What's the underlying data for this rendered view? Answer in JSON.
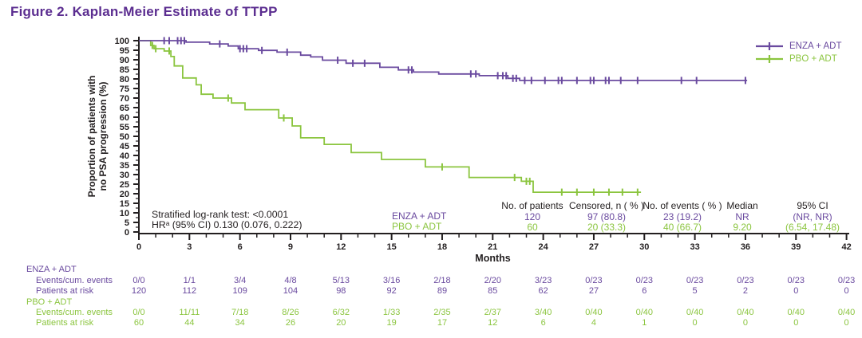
{
  "figure": {
    "title": "Figure 2. Kaplan-Meier Estimate of TTPP"
  },
  "colors": {
    "purple": "#6a4a9f",
    "green": "#8bc53f",
    "title_purple": "#5b2d90",
    "ink": "#231f20"
  },
  "chart_data": {
    "type": "line",
    "subtype": "kaplan-meier-step",
    "xlabel": "Months",
    "ylabel_lines": [
      "Proportion of patients with",
      "no PSA progression (%)"
    ],
    "xlim": [
      0,
      42
    ],
    "x_major_tick": 3,
    "x_minor_tick": 1,
    "ylim": [
      0,
      100
    ],
    "y_major_tick": 5,
    "y_minor_tick": 2.5,
    "grid": false,
    "legend_position": "top-right",
    "legend": [
      {
        "name": "ENZA + ADT",
        "color": "#6a4a9f"
      },
      {
        "name": "PBO + ADT",
        "color": "#8bc53f"
      }
    ],
    "series": [
      {
        "name": "ENZA + ADT",
        "color": "#6a4a9f",
        "steps": [
          [
            0,
            100
          ],
          [
            2.8,
            99.2
          ],
          [
            4.2,
            98.3
          ],
          [
            5.3,
            97.2
          ],
          [
            5.9,
            95.8
          ],
          [
            7.1,
            94.9
          ],
          [
            8.2,
            94.0
          ],
          [
            9.6,
            92.4
          ],
          [
            10.2,
            91.5
          ],
          [
            10.9,
            89.8
          ],
          [
            12.3,
            88.2
          ],
          [
            14.3,
            86.1
          ],
          [
            15.4,
            84.7
          ],
          [
            16.3,
            83.6
          ],
          [
            17.8,
            82.6
          ],
          [
            20.2,
            81.7
          ],
          [
            21.9,
            80.3
          ],
          [
            22.6,
            79.2
          ]
        ],
        "end_month": 36.1,
        "censor_months": [
          1.5,
          1.8,
          2.3,
          2.5,
          2.7,
          4.8,
          6.0,
          6.2,
          6.4,
          7.3,
          8.8,
          11.8,
          12.7,
          13.4,
          16.0,
          16.2,
          19.7,
          20.0,
          21.3,
          21.6,
          21.8,
          22.2,
          22.4,
          22.9,
          23.3,
          24.1,
          24.9,
          25.1,
          26.0,
          26.8,
          27.0,
          27.7,
          27.9,
          28.6,
          29.6,
          32.2,
          33.1,
          36.0
        ]
      },
      {
        "name": "PBO + ADT",
        "color": "#8bc53f",
        "steps": [
          [
            0,
            100
          ],
          [
            0.7,
            97.5
          ],
          [
            0.9,
            95.8
          ],
          [
            1.5,
            94.6
          ],
          [
            1.9,
            91.7
          ],
          [
            2.1,
            86.8
          ],
          [
            2.6,
            80.5
          ],
          [
            3.4,
            76.9
          ],
          [
            3.7,
            72.0
          ],
          [
            4.4,
            70.0
          ],
          [
            5.5,
            67.4
          ],
          [
            6.3,
            63.9
          ],
          [
            8.3,
            59.6
          ],
          [
            9.1,
            55.4
          ],
          [
            9.6,
            49.2
          ],
          [
            11.0,
            45.8
          ],
          [
            12.6,
            41.5
          ],
          [
            14.4,
            37.9
          ],
          [
            17.0,
            34.0
          ],
          [
            19.6,
            28.5
          ],
          [
            22.7,
            26.5
          ],
          [
            23.4,
            20.8
          ]
        ],
        "end_month": 29.8,
        "censor_months": [
          0.8,
          1.0,
          1.8,
          5.3,
          8.6,
          18.0,
          22.3,
          23.0,
          23.2,
          25.1,
          26.0,
          27.0,
          27.9,
          28.7,
          29.6
        ]
      }
    ],
    "annotations": {
      "logrank": "Stratified log-rank test: <0.0001",
      "hr": "HRᵃ (95% CI) 0.130 (0.076, 0.222)"
    }
  },
  "stats_table": {
    "headers": [
      "No. of patients",
      "Censored, n ( % )",
      "No. of events ( % )",
      "Median",
      "95% CI"
    ],
    "rows": [
      {
        "label": "ENZA + ADT",
        "values": [
          "120",
          "97 (80.8)",
          "23 (19.2)",
          "NR",
          "(NR, NR)"
        ]
      },
      {
        "label": "PBO + ADT",
        "values": [
          "60",
          "20 (33.3)",
          "40 (66.7)",
          "9.20",
          "(6.54, 17.48)"
        ]
      }
    ]
  },
  "risk_table": {
    "groups": [
      {
        "label": "ENZA + ADT",
        "rows": [
          {
            "label": "Events/cum. events",
            "values": [
              "0/0",
              "1/1",
              "3/4",
              "4/8",
              "5/13",
              "3/16",
              "2/18",
              "2/20",
              "3/23",
              "0/23",
              "0/23",
              "0/23",
              "0/23",
              "0/23",
              "0/23"
            ]
          },
          {
            "label": "Patients at risk",
            "values": [
              "120",
              "112",
              "109",
              "104",
              "98",
              "92",
              "89",
              "85",
              "62",
              "27",
              "6",
              "5",
              "2",
              "0",
              "0"
            ]
          }
        ]
      },
      {
        "label": "PBO + ADT",
        "rows": [
          {
            "label": "Events/cum. events",
            "values": [
              "0/0",
              "11/11",
              "7/18",
              "8/26",
              "6/32",
              "1/33",
              "2/35",
              "2/37",
              "3/40",
              "0/40",
              "0/40",
              "0/40",
              "0/40",
              "0/40",
              "0/40"
            ]
          },
          {
            "label": "Patients at risk",
            "values": [
              "60",
              "44",
              "34",
              "26",
              "20",
              "19",
              "17",
              "12",
              "6",
              "4",
              "1",
              "0",
              "0",
              "0",
              "0"
            ]
          }
        ]
      }
    ]
  }
}
